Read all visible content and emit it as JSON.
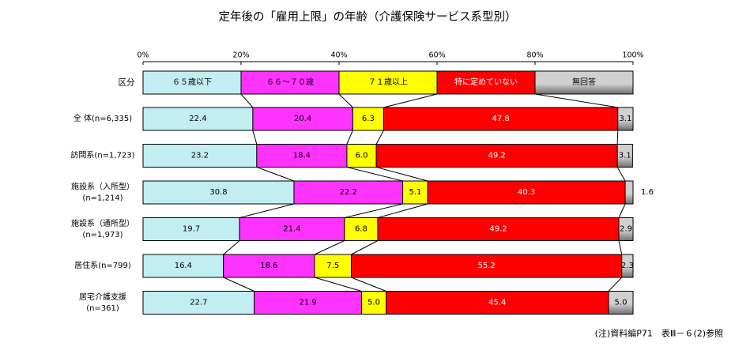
{
  "chart_data": {
    "type": "bar",
    "orientation": "horizontal",
    "stacked": true,
    "title": "定年後の「雇用上限」の年齢（介護保険サービス系型別）",
    "x_ticks": [
      "0%",
      "20%",
      "40%",
      "60%",
      "80%",
      "100%"
    ],
    "xlim": [
      0,
      100
    ],
    "legend_row": {
      "label": "区分",
      "entries": [
        "６５歳以下",
        "６６～７０歳",
        "７１歳以上",
        "特に定めていない",
        "無回答"
      ]
    },
    "categories": [
      [
        "全 体(n=6,335)"
      ],
      [
        "訪問系(n=1,723)"
      ],
      [
        "施設系（入所型）",
        "(n=1,214)"
      ],
      [
        "施設系（通所型）",
        "(n=1,973)"
      ],
      [
        "居住系(n=799)"
      ],
      [
        "居宅介護支援",
        "(n=361)"
      ]
    ],
    "series": [
      {
        "name": "６５歳以下",
        "color": "#c2eef2",
        "values": [
          22.4,
          23.2,
          30.8,
          19.7,
          16.4,
          22.7
        ]
      },
      {
        "name": "６６～７０歳",
        "color": "#ff33ff",
        "values": [
          20.4,
          18.4,
          22.2,
          21.4,
          18.6,
          21.9
        ]
      },
      {
        "name": "７１歳以上",
        "color": "#ffff00",
        "values": [
          6.3,
          6.0,
          5.1,
          6.8,
          7.5,
          5.0
        ]
      },
      {
        "name": "特に定めていない",
        "color": "#ff0000",
        "values": [
          47.8,
          49.2,
          40.3,
          49.2,
          55.2,
          45.4
        ]
      },
      {
        "name": "無回答",
        "color": "#d0d0d0",
        "values": [
          3.1,
          3.1,
          1.6,
          2.9,
          2.3,
          5.0
        ]
      }
    ],
    "labels": [
      [
        "22.4",
        "20.4",
        "6.3",
        "47.8",
        "3.1"
      ],
      [
        "23.2",
        "18.4",
        "6.0",
        "49.2",
        "3.1"
      ],
      [
        "30.8",
        "22.2",
        "5.1",
        "40.3",
        "1.6"
      ],
      [
        "19.7",
        "21.4",
        "6.8",
        "49.2",
        "2.9"
      ],
      [
        "16.4",
        "18.6",
        "7.5",
        "55.2",
        "2.3"
      ],
      [
        "22.7",
        "21.9",
        "5.0",
        "45.4",
        "5.0"
      ]
    ],
    "note": "(注)資料編P71　表Ⅲ－６(2)参照"
  }
}
